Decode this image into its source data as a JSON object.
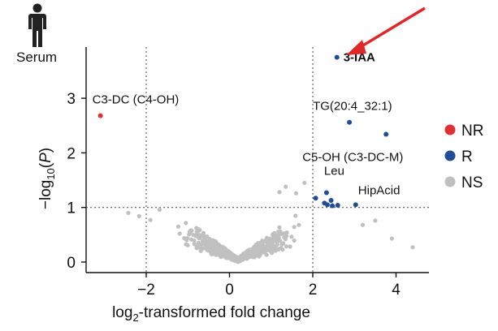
{
  "chart_data": {
    "type": "scatter",
    "title": "",
    "panel_label": "Serum",
    "xlabel": "log2-transformed fold change",
    "ylabel": "-log10(P)",
    "xlim": [
      -3.5,
      4.8
    ],
    "ylim": [
      -0.2,
      3.95
    ],
    "x_ticks": [
      -2,
      0,
      2,
      4
    ],
    "x_tick_labels": [
      "−2",
      "0",
      "2",
      "4"
    ],
    "y_ticks": [
      0,
      1,
      2,
      3
    ],
    "y_tick_labels": [
      "0",
      "1",
      "2",
      "3"
    ],
    "thresholds": {
      "x": [
        -2,
        2
      ],
      "y": [
        1
      ]
    },
    "grid": false,
    "legend_position": "right",
    "legend": [
      {
        "label": "NR",
        "color": "#e03030"
      },
      {
        "label": "R",
        "color": "#1f4e96"
      },
      {
        "label": "NS",
        "color": "#c0c0c0"
      }
    ],
    "series": [
      {
        "name": "NR",
        "color": "#e03030",
        "points": [
          {
            "x": -3.1,
            "y": 2.68
          }
        ]
      },
      {
        "name": "R",
        "color": "#1f4e96",
        "points": [
          {
            "x": 2.58,
            "y": 3.75
          },
          {
            "x": 2.88,
            "y": 2.56
          },
          {
            "x": 3.76,
            "y": 2.34
          },
          {
            "x": 2.07,
            "y": 1.17
          },
          {
            "x": 2.33,
            "y": 1.27
          },
          {
            "x": 2.44,
            "y": 1.13
          },
          {
            "x": 2.35,
            "y": 1.05
          },
          {
            "x": 2.47,
            "y": 1.03
          },
          {
            "x": 2.6,
            "y": 1.04
          },
          {
            "x": 2.28,
            "y": 1.08
          },
          {
            "x": 3.03,
            "y": 1.05
          }
        ]
      }
    ],
    "annotations": [
      {
        "text": "3-IAA",
        "x": 2.58,
        "y": 3.75,
        "bold": true,
        "arrow": true
      },
      {
        "text": "C3-DC (C4-OH)",
        "x": -3.1,
        "y": 2.68
      },
      {
        "text": "TG(20:4_32:1)",
        "x": 2.88,
        "y": 2.56
      },
      {
        "text": "C5-OH (C3-DC-M)",
        "x": 3.76,
        "y": 2.34
      },
      {
        "text": "Leu",
        "x": 2.33,
        "y": 1.27
      },
      {
        "text": "HipAcid",
        "x": 3.03,
        "y": 1.05
      }
    ],
    "ns_cloud": {
      "center_x": 0.2,
      "count": 700,
      "color": "#c0c0c0"
    },
    "ns_extra_points": [
      {
        "x": -2.43,
        "y": 0.9
      },
      {
        "x": -2.17,
        "y": 0.84
      },
      {
        "x": -1.9,
        "y": 0.77
      },
      {
        "x": -1.68,
        "y": 0.96
      },
      {
        "x": 4.4,
        "y": 0.27
      },
      {
        "x": 3.9,
        "y": 0.43
      },
      {
        "x": 3.5,
        "y": 0.76
      },
      {
        "x": 3.2,
        "y": 0.68
      },
      {
        "x": 1.8,
        "y": 1.45
      },
      {
        "x": 1.35,
        "y": 1.38
      },
      {
        "x": 1.2,
        "y": 1.28
      },
      {
        "x": 1.6,
        "y": 1.26
      }
    ]
  }
}
